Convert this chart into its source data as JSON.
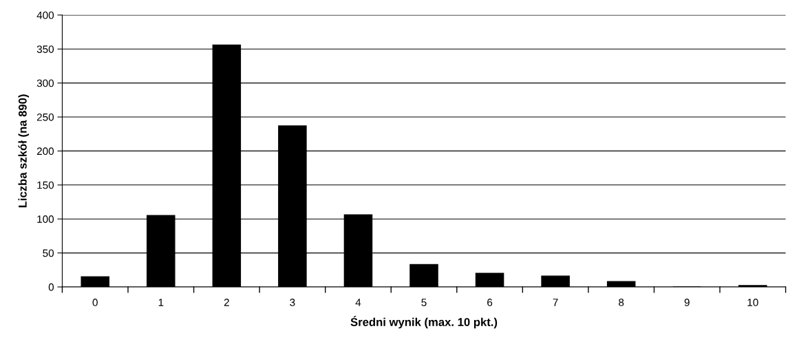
{
  "chart_data": {
    "type": "bar",
    "xlabel": "Średni wynik (max. 10 pkt.)",
    "ylabel": "Liczba szkół (na 890)",
    "categories": [
      "0",
      "1",
      "2",
      "3",
      "4",
      "5",
      "6",
      "7",
      "8",
      "9",
      "10"
    ],
    "values": [
      15,
      105,
      356,
      237,
      106,
      33,
      20,
      16,
      8,
      0,
      2
    ],
    "color": "#000000",
    "ylim": [
      0,
      400
    ],
    "yticks": [
      0,
      50,
      100,
      150,
      200,
      250,
      300,
      350,
      400
    ],
    "grid": "y"
  }
}
